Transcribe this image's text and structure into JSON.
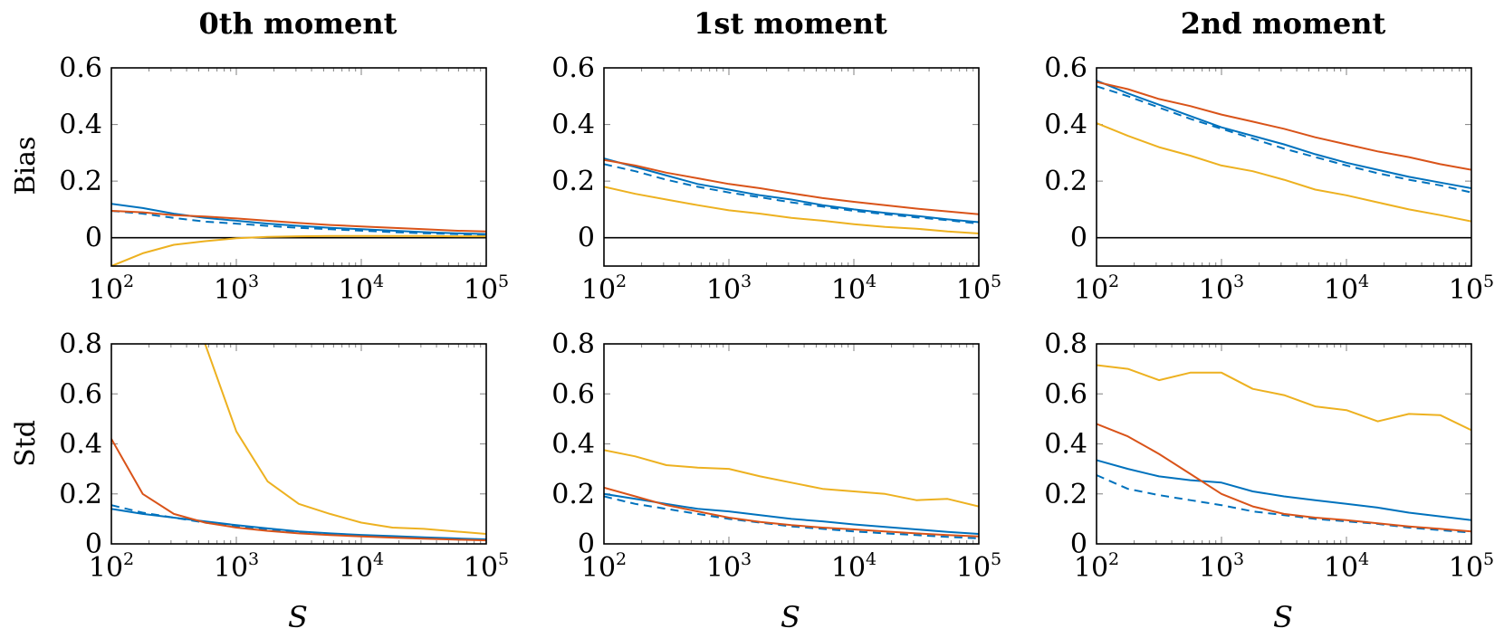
{
  "figure": {
    "column_titles": [
      "0th moment",
      "1st moment",
      "2nd moment"
    ],
    "row_labels": [
      "Bias",
      "Std"
    ],
    "x_label": "S",
    "series_colors": {
      "blue": "#0072BD",
      "blue_dashed": "#0072BD",
      "red": "#D95319",
      "yellow": "#EDB120"
    }
  },
  "chart_data": [
    {
      "type": "line",
      "row": "Bias",
      "column": "0th moment",
      "x": [
        100,
        178,
        316,
        562,
        1000,
        1778,
        3162,
        5623,
        10000,
        17783,
        31623,
        56234,
        100000
      ],
      "x_scale": "log",
      "xlim": [
        100,
        100000
      ],
      "ylim": [
        -0.1,
        0.6
      ],
      "xticks": [
        "10^2",
        "10^3",
        "10^4",
        "10^5"
      ],
      "yticks": [
        0,
        0.2,
        0.4,
        0.6
      ],
      "zero_line": true,
      "series": [
        {
          "color": "blue",
          "style": "solid",
          "values": [
            0.12,
            0.105,
            0.085,
            0.07,
            0.06,
            0.05,
            0.042,
            0.035,
            0.03,
            0.025,
            0.02,
            0.016,
            0.013
          ]
        },
        {
          "color": "blue_dashed",
          "style": "dashed",
          "values": [
            0.095,
            0.085,
            0.07,
            0.057,
            0.05,
            0.042,
            0.035,
            0.03,
            0.025,
            0.02,
            0.016,
            0.013,
            0.01
          ]
        },
        {
          "color": "red",
          "style": "solid",
          "values": [
            0.095,
            0.09,
            0.08,
            0.075,
            0.068,
            0.06,
            0.052,
            0.045,
            0.04,
            0.035,
            0.03,
            0.025,
            0.022
          ]
        },
        {
          "color": "yellow",
          "style": "solid",
          "values": [
            -0.1,
            -0.055,
            -0.025,
            -0.012,
            -0.002,
            0.003,
            0.005,
            0.006,
            0.006,
            0.006,
            0.006,
            0.005,
            0.005
          ]
        }
      ]
    },
    {
      "type": "line",
      "row": "Bias",
      "column": "1st moment",
      "x": [
        100,
        178,
        316,
        562,
        1000,
        1778,
        3162,
        5623,
        10000,
        17783,
        31623,
        56234,
        100000
      ],
      "x_scale": "log",
      "xlim": [
        100,
        100000
      ],
      "ylim": [
        -0.1,
        0.6
      ],
      "xticks": [
        "10^2",
        "10^3",
        "10^4",
        "10^5"
      ],
      "yticks": [
        0,
        0.2,
        0.4,
        0.6
      ],
      "zero_line": true,
      "series": [
        {
          "color": "blue",
          "style": "solid",
          "values": [
            0.28,
            0.25,
            0.22,
            0.19,
            0.17,
            0.15,
            0.135,
            0.115,
            0.1,
            0.088,
            0.077,
            0.065,
            0.055
          ]
        },
        {
          "color": "blue_dashed",
          "style": "dashed",
          "values": [
            0.26,
            0.235,
            0.205,
            0.18,
            0.16,
            0.143,
            0.125,
            0.11,
            0.095,
            0.083,
            0.072,
            0.062,
            0.05
          ]
        },
        {
          "color": "red",
          "style": "solid",
          "values": [
            0.275,
            0.255,
            0.23,
            0.21,
            0.19,
            0.175,
            0.157,
            0.14,
            0.127,
            0.115,
            0.103,
            0.093,
            0.083
          ]
        },
        {
          "color": "yellow",
          "style": "solid",
          "values": [
            0.18,
            0.155,
            0.135,
            0.115,
            0.097,
            0.085,
            0.07,
            0.06,
            0.048,
            0.038,
            0.032,
            0.022,
            0.015
          ]
        }
      ]
    },
    {
      "type": "line",
      "row": "Bias",
      "column": "2nd moment",
      "x": [
        100,
        178,
        316,
        562,
        1000,
        1778,
        3162,
        5623,
        10000,
        17783,
        31623,
        56234,
        100000
      ],
      "x_scale": "log",
      "xlim": [
        100,
        100000
      ],
      "ylim": [
        -0.1,
        0.6
      ],
      "xticks": [
        "10^2",
        "10^3",
        "10^4",
        "10^5"
      ],
      "yticks": [
        0,
        0.2,
        0.4,
        0.6
      ],
      "zero_line": true,
      "series": [
        {
          "color": "blue",
          "style": "solid",
          "values": [
            0.555,
            0.51,
            0.47,
            0.43,
            0.39,
            0.36,
            0.33,
            0.295,
            0.265,
            0.24,
            0.215,
            0.195,
            0.175
          ]
        },
        {
          "color": "blue_dashed",
          "style": "dashed",
          "values": [
            0.535,
            0.5,
            0.46,
            0.42,
            0.385,
            0.35,
            0.315,
            0.285,
            0.255,
            0.228,
            0.205,
            0.185,
            0.16
          ]
        },
        {
          "color": "red",
          "style": "solid",
          "values": [
            0.55,
            0.525,
            0.49,
            0.465,
            0.435,
            0.41,
            0.385,
            0.355,
            0.33,
            0.305,
            0.285,
            0.26,
            0.24
          ]
        },
        {
          "color": "yellow",
          "style": "solid",
          "values": [
            0.405,
            0.36,
            0.32,
            0.29,
            0.255,
            0.235,
            0.205,
            0.17,
            0.15,
            0.125,
            0.1,
            0.08,
            0.058
          ]
        }
      ]
    },
    {
      "type": "line",
      "row": "Std",
      "column": "0th moment",
      "x": [
        100,
        178,
        316,
        562,
        1000,
        1778,
        3162,
        5623,
        10000,
        17783,
        31623,
        56234,
        100000
      ],
      "x_scale": "log",
      "xlim": [
        100,
        100000
      ],
      "ylim": [
        0,
        0.8
      ],
      "xticks": [
        "10^2",
        "10^3",
        "10^4",
        "10^5"
      ],
      "yticks": [
        0,
        0.2,
        0.4,
        0.6,
        0.8
      ],
      "zero_line": false,
      "series": [
        {
          "color": "blue",
          "style": "solid",
          "values": [
            0.14,
            0.12,
            0.105,
            0.09,
            0.075,
            0.062,
            0.05,
            0.042,
            0.036,
            0.031,
            0.026,
            0.022,
            0.018
          ]
        },
        {
          "color": "blue_dashed",
          "style": "dashed",
          "values": [
            0.155,
            0.125,
            0.105,
            0.085,
            0.07,
            0.058,
            0.047,
            0.04,
            0.034,
            0.029,
            0.024,
            0.02,
            0.016
          ]
        },
        {
          "color": "red",
          "style": "solid",
          "values": [
            0.42,
            0.2,
            0.12,
            0.085,
            0.065,
            0.052,
            0.042,
            0.035,
            0.03,
            0.025,
            0.021,
            0.017,
            0.014
          ]
        },
        {
          "color": "yellow",
          "style": "solid",
          "values": [
            null,
            null,
            null,
            0.8,
            0.45,
            0.25,
            0.16,
            0.12,
            0.085,
            0.065,
            0.06,
            0.05,
            0.04
          ]
        }
      ]
    },
    {
      "type": "line",
      "row": "Std",
      "column": "1st moment",
      "x": [
        100,
        178,
        316,
        562,
        1000,
        1778,
        3162,
        5623,
        10000,
        17783,
        31623,
        56234,
        100000
      ],
      "x_scale": "log",
      "xlim": [
        100,
        100000
      ],
      "ylim": [
        0,
        0.8
      ],
      "xticks": [
        "10^2",
        "10^3",
        "10^4",
        "10^5"
      ],
      "yticks": [
        0,
        0.2,
        0.4,
        0.6,
        0.8
      ],
      "zero_line": false,
      "series": [
        {
          "color": "blue",
          "style": "solid",
          "values": [
            0.2,
            0.18,
            0.16,
            0.14,
            0.13,
            0.115,
            0.1,
            0.09,
            0.078,
            0.068,
            0.058,
            0.048,
            0.04
          ]
        },
        {
          "color": "blue_dashed",
          "style": "dashed",
          "values": [
            0.19,
            0.16,
            0.14,
            0.12,
            0.1,
            0.085,
            0.07,
            0.06,
            0.05,
            0.042,
            0.035,
            0.028,
            0.022
          ]
        },
        {
          "color": "red",
          "style": "solid",
          "values": [
            0.225,
            0.19,
            0.155,
            0.13,
            0.105,
            0.088,
            0.075,
            0.065,
            0.058,
            0.05,
            0.042,
            0.035,
            0.03
          ]
        },
        {
          "color": "yellow",
          "style": "solid",
          "values": [
            0.375,
            0.35,
            0.315,
            0.305,
            0.3,
            0.27,
            0.245,
            0.22,
            0.21,
            0.2,
            0.175,
            0.18,
            0.15
          ]
        }
      ]
    },
    {
      "type": "line",
      "row": "Std",
      "column": "2nd moment",
      "x": [
        100,
        178,
        316,
        562,
        1000,
        1778,
        3162,
        5623,
        10000,
        17783,
        31623,
        56234,
        100000
      ],
      "x_scale": "log",
      "xlim": [
        100,
        100000
      ],
      "ylim": [
        0,
        0.8
      ],
      "xticks": [
        "10^2",
        "10^3",
        "10^4",
        "10^5"
      ],
      "yticks": [
        0,
        0.2,
        0.4,
        0.6,
        0.8
      ],
      "zero_line": false,
      "series": [
        {
          "color": "blue",
          "style": "solid",
          "values": [
            0.335,
            0.3,
            0.27,
            0.255,
            0.245,
            0.21,
            0.19,
            0.175,
            0.16,
            0.145,
            0.125,
            0.11,
            0.095
          ]
        },
        {
          "color": "blue_dashed",
          "style": "dashed",
          "values": [
            0.275,
            0.22,
            0.195,
            0.175,
            0.155,
            0.13,
            0.115,
            0.1,
            0.09,
            0.08,
            0.065,
            0.055,
            0.045
          ]
        },
        {
          "color": "red",
          "style": "solid",
          "values": [
            0.48,
            0.43,
            0.36,
            0.28,
            0.2,
            0.15,
            0.12,
            0.105,
            0.095,
            0.082,
            0.07,
            0.06,
            0.05
          ]
        },
        {
          "color": "yellow",
          "style": "solid",
          "values": [
            0.715,
            0.7,
            0.655,
            0.685,
            0.685,
            0.62,
            0.595,
            0.55,
            0.535,
            0.49,
            0.52,
            0.515,
            0.455
          ]
        }
      ]
    }
  ]
}
